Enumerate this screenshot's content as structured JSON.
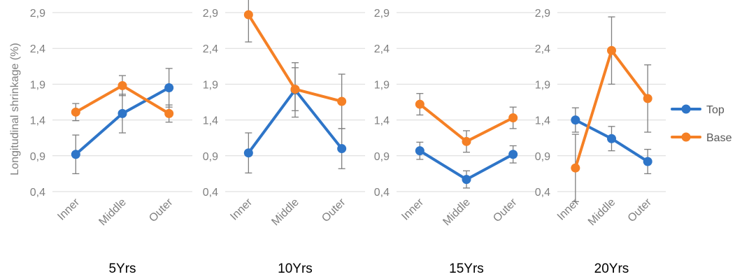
{
  "chart_data": {
    "type": "line",
    "ylabel": "Longitudinal shrinkage (%)",
    "ylim": [
      0.4,
      2.9
    ],
    "yticks": [
      "0,4",
      "0,9",
      "1,4",
      "1,9",
      "2,4",
      "2,9"
    ],
    "categories": [
      "Inner",
      "Middle",
      "Outer"
    ],
    "grid": true,
    "legend_position": "right",
    "colors": {
      "Top": "#2e75c8",
      "Base": "#f58025",
      "error_bar": "#7f7f7f",
      "grid": "#d9d9d9"
    },
    "panels": [
      {
        "title": "5Yrs",
        "series": [
          {
            "name": "Top",
            "values": [
              0.92,
              1.49,
              1.85
            ],
            "errors": [
              0.27,
              0.27,
              0.27
            ]
          },
          {
            "name": "Base",
            "values": [
              1.51,
              1.88,
              1.49
            ],
            "errors": [
              0.12,
              0.14,
              0.12
            ]
          }
        ]
      },
      {
        "title": "10Yrs",
        "series": [
          {
            "name": "Top",
            "values": [
              0.94,
              1.82,
              1.0
            ],
            "errors": [
              0.28,
              0.38,
              0.28
            ]
          },
          {
            "name": "Base",
            "values": [
              2.87,
              1.83,
              1.66
            ],
            "errors": [
              0.38,
              0.3,
              0.38
            ]
          }
        ]
      },
      {
        "title": "15Yrs",
        "series": [
          {
            "name": "Top",
            "values": [
              0.97,
              0.57,
              0.92
            ],
            "errors": [
              0.12,
              0.12,
              0.12
            ]
          },
          {
            "name": "Base",
            "values": [
              1.62,
              1.1,
              1.43
            ],
            "errors": [
              0.15,
              0.15,
              0.15
            ]
          }
        ]
      },
      {
        "title": "20Yrs",
        "series": [
          {
            "name": "Top",
            "values": [
              1.4,
              1.14,
              0.82
            ],
            "errors": [
              0.17,
              0.17,
              0.17
            ]
          },
          {
            "name": "Base",
            "values": [
              0.73,
              2.37,
              1.7
            ],
            "errors": [
              0.47,
              0.47,
              0.47
            ]
          }
        ]
      }
    ],
    "legend": [
      {
        "name": "Top",
        "label": "Top"
      },
      {
        "name": "Base",
        "label": "Base"
      }
    ]
  }
}
